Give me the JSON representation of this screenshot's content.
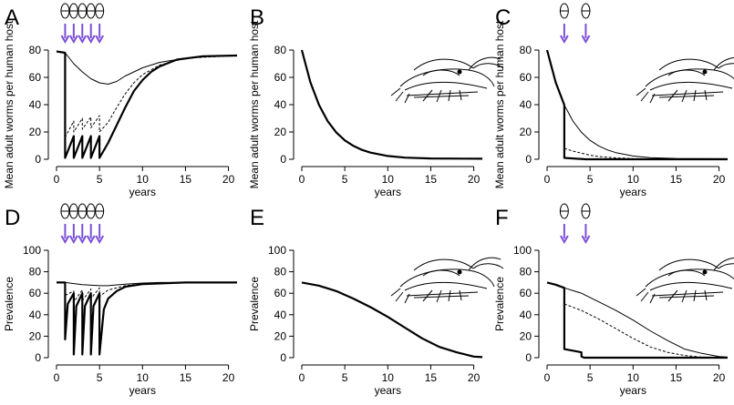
{
  "chart_data": [
    {
      "type": "line",
      "panel": "A",
      "ylabel": "Mean adult worms per human host",
      "xlabel": "years",
      "xlim": [
        0,
        21
      ],
      "ylim": [
        0,
        80
      ],
      "xticks": [
        0,
        5,
        10,
        15,
        20
      ],
      "yticks": [
        0,
        20,
        40,
        60,
        80
      ],
      "treatment_times": [
        1,
        2,
        3,
        4,
        5
      ],
      "arrow_color": "#7b4fd6",
      "series": [
        {
          "color": "#000000",
          "width": 1,
          "dash": "none",
          "x": [
            0,
            1,
            2,
            3,
            4,
            5,
            6,
            7,
            8,
            10,
            12,
            15,
            18,
            21
          ],
          "values": [
            79,
            78,
            70,
            64,
            59,
            56,
            55,
            57,
            61,
            67,
            71,
            74,
            75.5,
            76
          ]
        },
        {
          "color": "#000000",
          "width": 1,
          "dash": "3,2",
          "x": [
            1,
            2,
            2,
            3,
            3,
            4,
            4,
            5,
            5,
            6,
            7,
            8,
            9,
            10,
            12,
            15,
            21
          ],
          "values": [
            16,
            28,
            20,
            30,
            22,
            31,
            23,
            32,
            20,
            27,
            38,
            48,
            56,
            62,
            69,
            74,
            76
          ]
        },
        {
          "color": "#000000",
          "width": 2.2,
          "dash": "none",
          "x": [
            0,
            1,
            1,
            2,
            2,
            3,
            3,
            4,
            4,
            5,
            5,
            6,
            7,
            8,
            9,
            10,
            11,
            12,
            14,
            17,
            21
          ],
          "values": [
            79,
            78,
            1,
            17,
            1,
            17,
            1,
            17,
            1,
            17,
            1,
            12,
            25,
            38,
            50,
            58,
            64,
            68,
            73,
            75.5,
            76
          ]
        }
      ]
    },
    {
      "type": "line",
      "panel": "B",
      "ylabel": "Mean adult worms per human host",
      "xlabel": "years",
      "xlim": [
        0,
        21
      ],
      "ylim": [
        0,
        80
      ],
      "xticks": [
        0,
        5,
        10,
        15,
        20
      ],
      "yticks": [
        0,
        20,
        40,
        60,
        80
      ],
      "series": [
        {
          "color": "#000000",
          "width": 2.2,
          "dash": "none",
          "x": [
            0,
            1,
            2,
            3,
            4,
            5,
            6,
            7,
            8,
            10,
            12,
            15,
            21
          ],
          "values": [
            80,
            56.4,
            39.7,
            28,
            19.7,
            13.9,
            9.8,
            6.9,
            4.9,
            2.4,
            1.2,
            0.6,
            0.4
          ]
        }
      ]
    },
    {
      "type": "line",
      "panel": "C",
      "ylabel": "Mean adult worms per human host",
      "xlabel": "years",
      "xlim": [
        0,
        21
      ],
      "ylim": [
        0,
        80
      ],
      "xticks": [
        0,
        5,
        10,
        15,
        20
      ],
      "yticks": [
        0,
        20,
        40,
        60,
        80
      ],
      "treatment_times": [
        2,
        4.5
      ],
      "arrow_color": "#7b4fd6",
      "series": [
        {
          "color": "#000000",
          "width": 1,
          "dash": "none",
          "x": [
            2,
            3,
            4,
            5,
            6,
            7,
            8,
            10,
            12,
            15,
            21
          ],
          "values": [
            39.7,
            28,
            19.7,
            13.9,
            9.8,
            6.9,
            4.9,
            2.4,
            1.2,
            0.6,
            0.4
          ]
        },
        {
          "color": "#000000",
          "width": 1,
          "dash": "3,2",
          "x": [
            2,
            3,
            4,
            5,
            6,
            8,
            10,
            12
          ],
          "values": [
            8,
            6,
            4.5,
            3,
            2,
            1,
            0.5,
            0.3
          ]
        },
        {
          "color": "#000000",
          "width": 2.2,
          "dash": "none",
          "x": [
            0,
            1,
            2,
            2,
            4.5,
            21
          ],
          "values": [
            80,
            56.4,
            39.7,
            1,
            0,
            0
          ]
        }
      ]
    },
    {
      "type": "line",
      "panel": "D",
      "ylabel": "Prevalence",
      "xlabel": "years",
      "xlim": [
        0,
        21
      ],
      "ylim": [
        0,
        100
      ],
      "xticks": [
        0,
        5,
        10,
        15,
        20
      ],
      "yticks": [
        0,
        20,
        40,
        60,
        80,
        100
      ],
      "treatment_times": [
        1,
        2,
        3,
        4,
        5
      ],
      "arrow_color": "#7b4fd6",
      "series": [
        {
          "color": "#000000",
          "width": 1,
          "dash": "none",
          "x": [
            0,
            1,
            3,
            5,
            6,
            8,
            10,
            12,
            21
          ],
          "values": [
            70,
            70,
            68,
            67,
            67,
            68.5,
            69.5,
            70,
            70
          ]
        },
        {
          "color": "#000000",
          "width": 1,
          "dash": "3,2",
          "x": [
            1,
            2,
            2,
            3,
            3,
            4,
            4,
            5,
            5,
            6,
            8,
            10,
            15,
            21
          ],
          "values": [
            58,
            62,
            52,
            63,
            53,
            64,
            55,
            65,
            57,
            63,
            67,
            69,
            70,
            70
          ]
        },
        {
          "color": "#000000",
          "width": 2.2,
          "dash": "none",
          "x": [
            0,
            1,
            1,
            1.3,
            2,
            2,
            2.3,
            3,
            3,
            3.3,
            4,
            4,
            4.3,
            5,
            5,
            5.5,
            6,
            7,
            8,
            10,
            15,
            21
          ],
          "values": [
            70,
            70,
            17,
            50,
            60,
            3,
            48,
            60,
            3,
            48,
            60,
            3,
            48,
            60,
            3,
            45,
            55,
            62,
            66,
            68.5,
            70,
            70
          ]
        }
      ]
    },
    {
      "type": "line",
      "panel": "E",
      "ylabel": "Prevalence",
      "xlabel": "years",
      "xlim": [
        0,
        21
      ],
      "ylim": [
        0,
        100
      ],
      "xticks": [
        0,
        5,
        10,
        15,
        20
      ],
      "yticks": [
        0,
        20,
        40,
        60,
        80,
        100
      ],
      "series": [
        {
          "color": "#000000",
          "width": 2.2,
          "dash": "none",
          "x": [
            0,
            2,
            4,
            6,
            8,
            10,
            12,
            14,
            16,
            18,
            20,
            21
          ],
          "values": [
            70,
            67,
            62,
            55,
            47,
            38,
            28,
            18,
            10,
            5,
            1,
            0.5
          ]
        }
      ]
    },
    {
      "type": "line",
      "panel": "F",
      "ylabel": "Prevalence",
      "xlabel": "years",
      "xlim": [
        0,
        21
      ],
      "ylim": [
        0,
        100
      ],
      "xticks": [
        0,
        5,
        10,
        15,
        20
      ],
      "yticks": [
        0,
        20,
        40,
        60,
        80,
        100
      ],
      "treatment_times": [
        2,
        4.5
      ],
      "arrow_color": "#7b4fd6",
      "series": [
        {
          "color": "#000000",
          "width": 1,
          "dash": "none",
          "x": [
            2,
            4,
            6,
            8,
            10,
            12,
            14,
            16,
            18,
            20,
            21
          ],
          "values": [
            65,
            60,
            52,
            44,
            35,
            25,
            16,
            8,
            4,
            1,
            0.5
          ]
        },
        {
          "color": "#000000",
          "width": 1,
          "dash": "3,2",
          "x": [
            2,
            4,
            6,
            8,
            10,
            12,
            14,
            16,
            18,
            21
          ],
          "values": [
            50,
            44,
            36,
            27,
            18,
            10,
            5,
            2,
            0.5,
            0
          ]
        },
        {
          "color": "#000000",
          "width": 2.2,
          "dash": "none",
          "x": [
            0,
            1,
            2,
            2,
            4,
            4,
            4.3,
            21
          ],
          "values": [
            70,
            68,
            65,
            8,
            5,
            1,
            0,
            0
          ]
        }
      ]
    }
  ]
}
